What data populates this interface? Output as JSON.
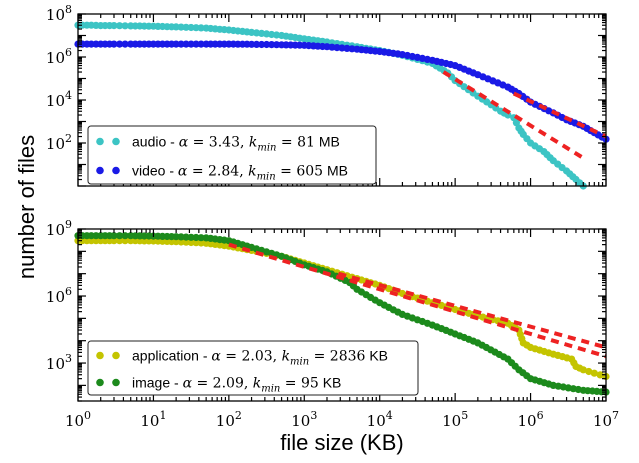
{
  "chart_data": {
    "type": "scatter",
    "xlabel": "file size (KB)",
    "ylabel": "number of files",
    "x_scale": "log",
    "y_scale": "log",
    "xlim": [
      1,
      10000000
    ],
    "x_ticks": [
      {
        "value": 1,
        "base": "10",
        "exp": "0"
      },
      {
        "value": 10,
        "base": "10",
        "exp": "1"
      },
      {
        "value": 100,
        "base": "10",
        "exp": "2"
      },
      {
        "value": 1000,
        "base": "10",
        "exp": "3"
      },
      {
        "value": 10000,
        "base": "10",
        "exp": "4"
      },
      {
        "value": 100000,
        "base": "10",
        "exp": "5"
      },
      {
        "value": 1000000,
        "base": "10",
        "exp": "6"
      },
      {
        "value": 10000000,
        "base": "10",
        "exp": "7"
      }
    ],
    "panels": [
      {
        "ylim": [
          1,
          100000000
        ],
        "y_ticks": [
          {
            "value": 100,
            "base": "10",
            "exp": "2"
          },
          {
            "value": 10000,
            "base": "10",
            "exp": "4"
          },
          {
            "value": 1000000,
            "base": "10",
            "exp": "6"
          },
          {
            "value": 100000000,
            "base": "10",
            "exp": "8"
          }
        ],
        "legend_position": "lower-left",
        "series": [
          {
            "name": "audio",
            "color": "#3cc4c4",
            "legend": {
              "name": "audio",
              "sep": " - ",
              "alpha_sym": "α",
              "alpha_eq": " = 3.43, ",
              "k": "k",
              "k_sub": "min",
              "k_eq": " = 81",
              "unit": " MB"
            },
            "points": [
              [
                1,
                30000000
              ],
              [
                1.5,
                30000000
              ],
              [
                2,
                29000000
              ],
              [
                3,
                29000000
              ],
              [
                5,
                28000000
              ],
              [
                10,
                27000000
              ],
              [
                20,
                25000000
              ],
              [
                50,
                22000000
              ],
              [
                100,
                18000000
              ],
              [
                200,
                14000000
              ],
              [
                500,
                10000000
              ],
              [
                1000,
                7000000
              ],
              [
                2000,
                5000000
              ],
              [
                5000,
                3000000
              ],
              [
                10000,
                2000000
              ],
              [
                20000,
                1200000
              ],
              [
                50000,
                500000
              ],
              [
                80000,
                180000
              ],
              [
                100000,
                80000
              ],
              [
                150000,
                30000
              ],
              [
                200000,
                15000
              ],
              [
                300000,
                6000
              ],
              [
                400000,
                3000
              ],
              [
                500000,
                2000
              ],
              [
                600000,
                1500
              ],
              [
                700000,
                500
              ],
              [
                800000,
                250
              ],
              [
                1000000,
                100
              ],
              [
                1500000,
                40
              ],
              [
                2000000,
                15
              ],
              [
                3000000,
                5
              ],
              [
                4000000,
                2
              ],
              [
                5000000,
                1
              ]
            ]
          },
          {
            "name": "video",
            "color": "#1a1ae6",
            "legend": {
              "name": "video",
              "sep": " - ",
              "alpha_sym": "α",
              "alpha_eq": " = 2.84, ",
              "k": "k",
              "k_sub": "min",
              "k_eq": " = 605",
              "unit": " MB"
            },
            "points": [
              [
                1,
                4000000
              ],
              [
                1.5,
                4000000
              ],
              [
                2,
                4000000
              ],
              [
                3,
                4000000
              ],
              [
                5,
                4000000
              ],
              [
                10,
                4000000
              ],
              [
                20,
                4000000
              ],
              [
                50,
                4000000
              ],
              [
                100,
                4000000
              ],
              [
                200,
                3900000
              ],
              [
                500,
                3700000
              ],
              [
                1000,
                3500000
              ],
              [
                2000,
                3000000
              ],
              [
                5000,
                2300000
              ],
              [
                10000,
                1800000
              ],
              [
                20000,
                1300000
              ],
              [
                50000,
                700000
              ],
              [
                100000,
                400000
              ],
              [
                200000,
                150000
              ],
              [
                500000,
                40000
              ],
              [
                700000,
                20000
              ],
              [
                1000000,
                8000
              ],
              [
                2000000,
                2500
              ],
              [
                3000000,
                1200
              ],
              [
                5000000,
                600
              ],
              [
                7000000,
                300
              ],
              [
                10000000,
                150
              ]
            ]
          }
        ],
        "fit_lines": [
          {
            "color": "#ee2222",
            "points": [
              [
                70000,
                200000
              ],
              [
                5000000,
                20
              ]
            ]
          },
          {
            "color": "#ee2222",
            "points": [
              [
                600000,
                20000
              ],
              [
                10000000,
                200
              ]
            ]
          }
        ]
      },
      {
        "ylim": [
          20,
          1000000000
        ],
        "y_ticks": [
          {
            "value": 1000,
            "base": "10",
            "exp": "3"
          },
          {
            "value": 1000000,
            "base": "10",
            "exp": "6"
          },
          {
            "value": 1000000000,
            "base": "10",
            "exp": "9"
          }
        ],
        "legend_position": "lower-left",
        "series": [
          {
            "name": "application",
            "color": "#c4c400",
            "legend": {
              "name": "application",
              "sep": " - ",
              "alpha_sym": "α",
              "alpha_eq": " = 2.03, ",
              "k": "k",
              "k_sub": "min",
              "k_eq": " = 2836",
              "unit": " KB"
            },
            "points": [
              [
                1,
                300000000
              ],
              [
                1.5,
                300000000
              ],
              [
                2,
                300000000
              ],
              [
                3,
                300000000
              ],
              [
                5,
                300000000
              ],
              [
                10,
                290000000
              ],
              [
                20,
                270000000
              ],
              [
                50,
                230000000
              ],
              [
                100,
                170000000
              ],
              [
                200,
                110000000
              ],
              [
                500,
                60000000
              ],
              [
                1000,
                30000000
              ],
              [
                2000,
                15000000
              ],
              [
                5000,
                6000000
              ],
              [
                10000,
                3000000
              ],
              [
                20000,
                1300000
              ],
              [
                50000,
                500000
              ],
              [
                100000,
                250000
              ],
              [
                200000,
                130000
              ],
              [
                500000,
                60000
              ],
              [
                700000,
                30000
              ],
              [
                800000,
                8000
              ],
              [
                1000000,
                5000
              ],
              [
                2000000,
                2500
              ],
              [
                3500000,
                1500
              ],
              [
                4000000,
                700
              ],
              [
                5000000,
                500
              ],
              [
                7000000,
                350
              ],
              [
                10000000,
                250
              ]
            ]
          },
          {
            "name": "image",
            "color": "#1c8a1c",
            "legend": {
              "name": "image",
              "sep": " - ",
              "alpha_sym": "α",
              "alpha_eq": " = 2.09, ",
              "k": "k",
              "k_sub": "min",
              "k_eq": " = 95",
              "unit": " KB"
            },
            "points": [
              [
                1,
                500000000
              ],
              [
                1.5,
                500000000
              ],
              [
                2,
                500000000
              ],
              [
                3,
                500000000
              ],
              [
                5,
                500000000
              ],
              [
                10,
                480000000
              ],
              [
                20,
                450000000
              ],
              [
                50,
                400000000
              ],
              [
                100,
                300000000
              ],
              [
                200,
                150000000
              ],
              [
                500,
                60000000
              ],
              [
                1000,
                25000000
              ],
              [
                2000,
                12000000
              ],
              [
                4000,
                4000000
              ],
              [
                5000,
                2000000
              ],
              [
                10000,
                500000
              ],
              [
                20000,
                150000
              ],
              [
                50000,
                50000
              ],
              [
                100000,
                20000
              ],
              [
                200000,
                8000
              ],
              [
                500000,
                1500
              ],
              [
                700000,
                500
              ],
              [
                1000000,
                200
              ],
              [
                2000000,
                100
              ],
              [
                5000000,
                60
              ],
              [
                10000000,
                50
              ]
            ]
          }
        ],
        "fit_lines": [
          {
            "color": "#ee2222",
            "points": [
              [
                100,
                200000000
              ],
              [
                10000000,
                2000
              ]
            ]
          },
          {
            "color": "#ee2222",
            "points": [
              [
                2836,
                10000000
              ],
              [
                10000000,
                5000
              ]
            ]
          }
        ]
      }
    ]
  }
}
